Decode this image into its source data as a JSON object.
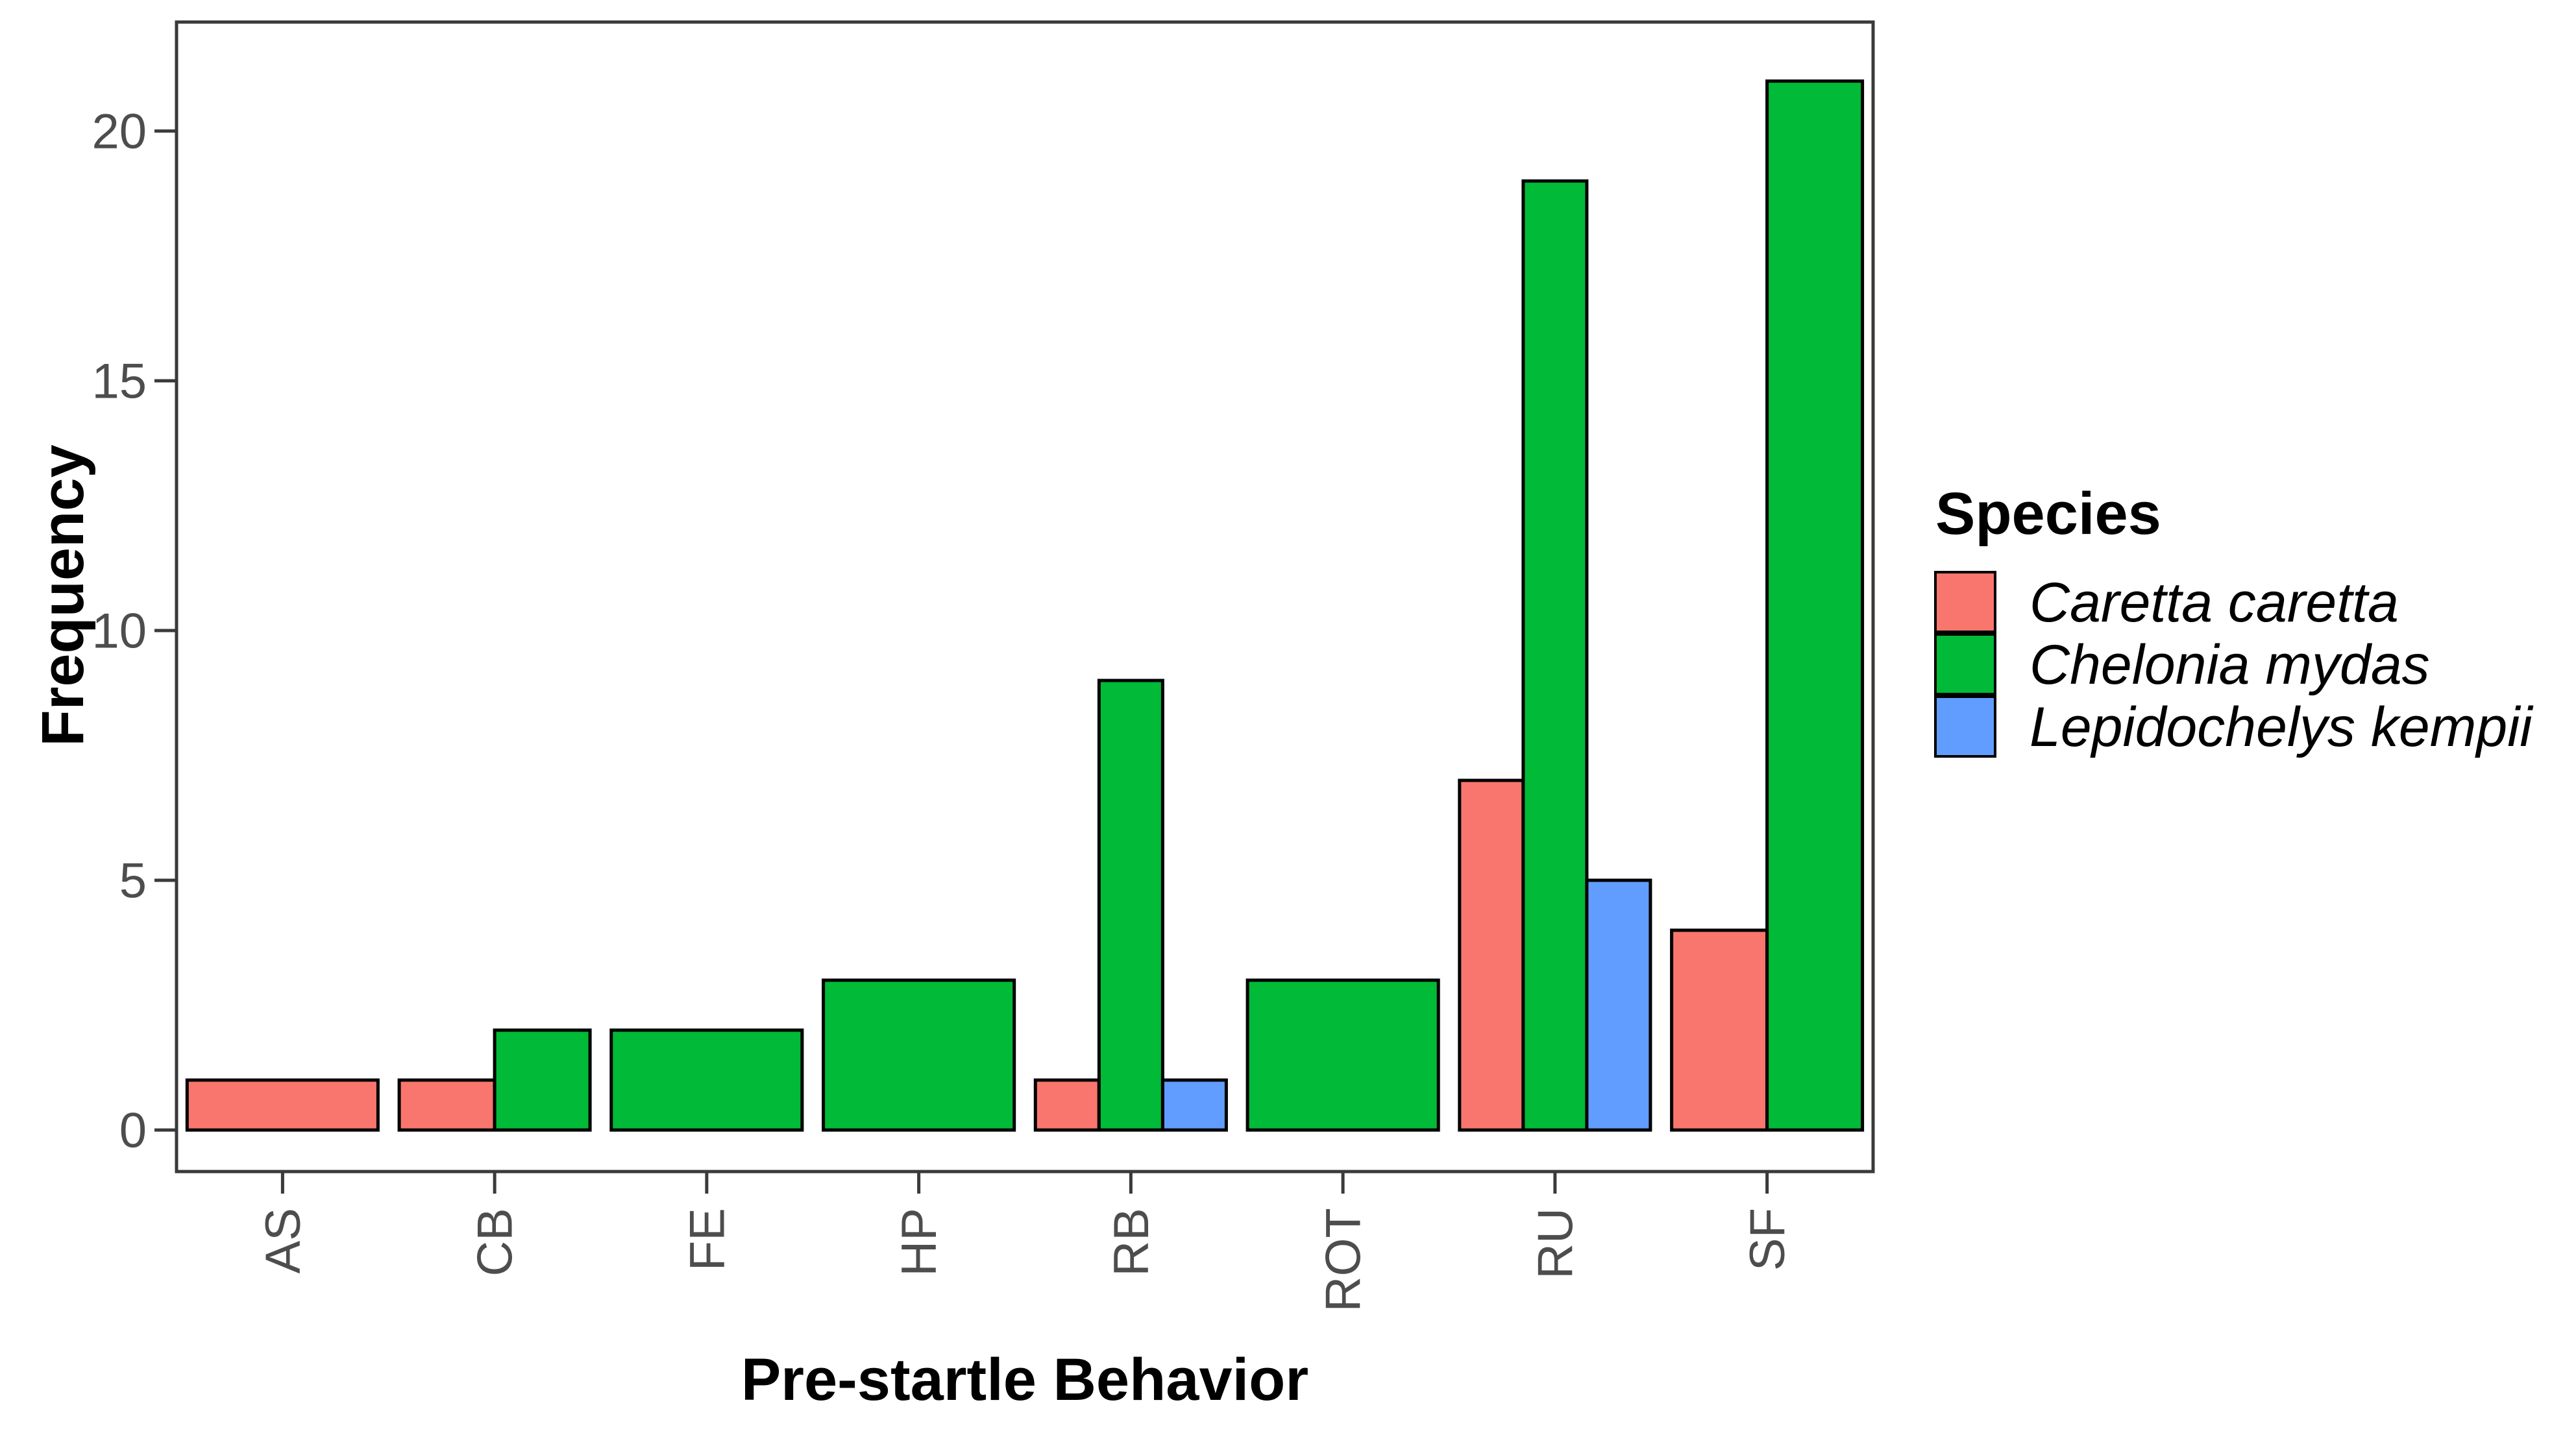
{
  "chart_data": {
    "type": "bar",
    "title": "",
    "xlabel": "Pre-startle Behavior",
    "ylabel": "Frequency",
    "categories": [
      "AS",
      "CB",
      "FE",
      "HP",
      "RB",
      "ROT",
      "RU",
      "SF"
    ],
    "series": [
      {
        "name": "Caretta caretta",
        "color": "#F8766D",
        "values": [
          1,
          1,
          0,
          0,
          1,
          0,
          7,
          4
        ]
      },
      {
        "name": "Chelonia mydas",
        "color": "#00BA38",
        "values": [
          0,
          2,
          2,
          3,
          9,
          3,
          19,
          21
        ]
      },
      {
        "name": "Lepidochelys kempii",
        "color": "#619CFF",
        "values": [
          0,
          0,
          0,
          0,
          1,
          0,
          5,
          0
        ]
      }
    ],
    "y_ticks": [
      "0",
      "5",
      "10",
      "15",
      "20"
    ],
    "y_tick_values": [
      0,
      5,
      10,
      15,
      20
    ],
    "ylim": [
      0,
      22
    ],
    "grid": false,
    "bar_style": {
      "stroke": "#000000",
      "group_fraction": 0.9,
      "dodge": "only-present-series"
    },
    "x_tick_rotation": 90,
    "legend": {
      "title": "Species",
      "position": "right",
      "items": [
        {
          "label": "Caretta caretta",
          "color": "#F8766D"
        },
        {
          "label": "Chelonia mydas",
          "color": "#00BA38"
        },
        {
          "label": "Lepidochelys kempii",
          "color": "#619CFF"
        }
      ]
    },
    "frame_color": "#3A3A3A"
  }
}
